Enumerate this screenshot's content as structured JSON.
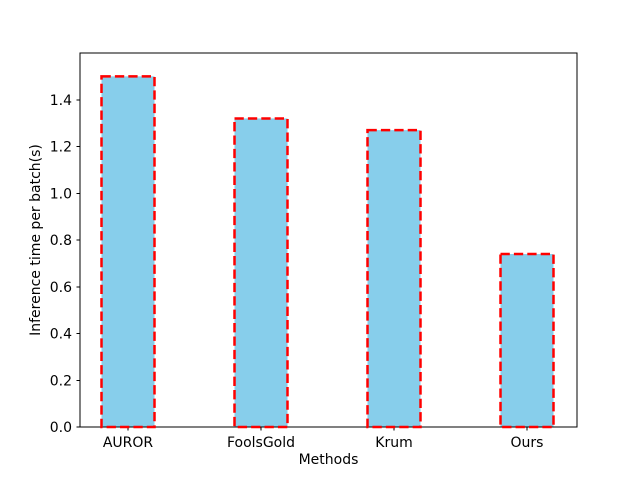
{
  "figure": {
    "background": "#ffffff"
  },
  "chart_data": {
    "type": "bar",
    "title": "",
    "categories": [
      "AUROR",
      "FoolsGold",
      "Krum",
      "Ours"
    ],
    "values": [
      1.5,
      1.32,
      1.27,
      0.74
    ],
    "xlabel": "Methods",
    "ylabel": "Inference time per batch(s)",
    "ylim": [
      0,
      1.6
    ],
    "ytick_values": [
      0.0,
      0.2,
      0.4,
      0.6,
      0.8,
      1.0,
      1.2,
      1.4
    ],
    "ytick_labels": [
      "0.0",
      "0.2",
      "0.4",
      "0.6",
      "0.8",
      "1.0",
      "1.2",
      "1.4"
    ],
    "grid": false,
    "legend": null,
    "bar_fill_color": "#87CEEB",
    "bar_edge_color": "#FF0000",
    "bar_edge_style": "dashed",
    "spine_color": "#000000",
    "text_color": "#000000"
  }
}
